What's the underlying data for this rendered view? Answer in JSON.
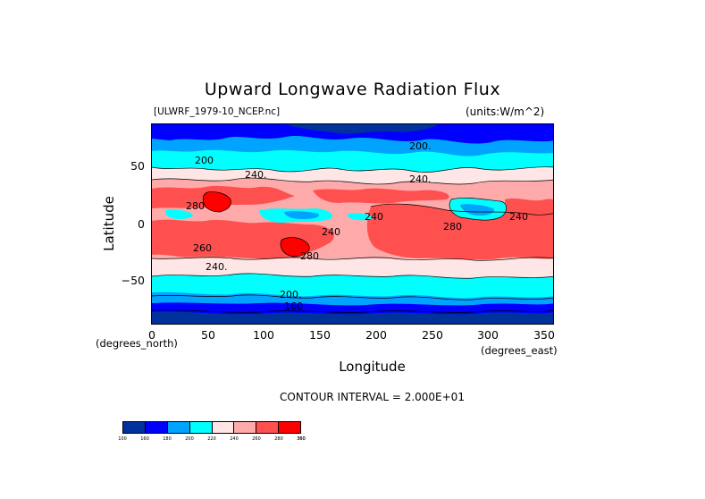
{
  "title": "Upward Longwave Radiation Flux",
  "filename": "[ULWRF_1979-10_NCEP.nc]",
  "units": "(units:W/m^2)",
  "x_label": "Longitude",
  "y_label": "Latitude",
  "x_unit": "(degrees_east)",
  "y_unit": "(degrees_north)",
  "contour_interval": "CONTOUR INTERVAL = 2.000E+01",
  "x_ticks": [
    "0",
    "50",
    "100",
    "150",
    "200",
    "250",
    "300",
    "350"
  ],
  "y_ticks": [
    "50",
    "0",
    "−50"
  ],
  "colorbar": {
    "levels": [
      "100",
      "160",
      "180",
      "200",
      "220",
      "240",
      "260",
      "280",
      "300",
      "360"
    ],
    "colors": [
      "#00329e",
      "#0000ff",
      "#00a4ff",
      "#00ffff",
      "#ffe6e6",
      "#ffaaaa",
      "#ff5050",
      "#ff0000"
    ]
  },
  "contour_labels": [
    "200.",
    "200",
    "240.",
    "280",
    "240",
    "280",
    "240",
    "240.",
    "200.",
    "160",
    "280",
    "240.",
    "260",
    "240"
  ],
  "map_data": {
    "type": "filled-contour",
    "variable": "ULWRF",
    "lon_range": [
      0,
      360
    ],
    "lat_range": [
      -90,
      90
    ],
    "contour_levels": [
      160,
      180,
      200,
      220,
      240,
      260,
      280,
      300
    ]
  }
}
